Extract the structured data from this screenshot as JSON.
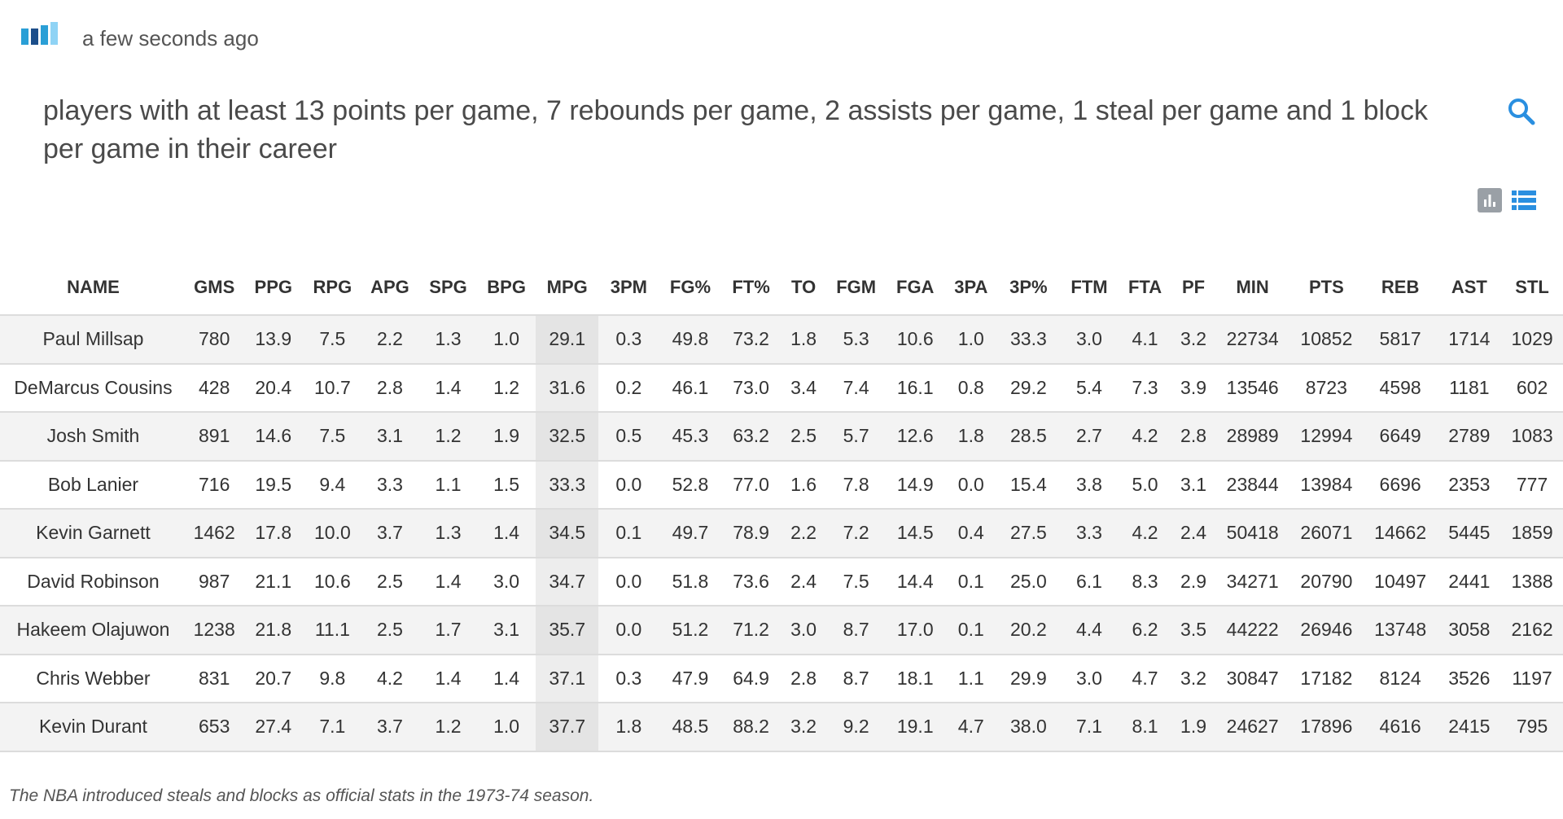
{
  "header": {
    "timestamp": "a few seconds ago",
    "logo_colors": [
      "#2a9fd6",
      "#1c4e8a",
      "#2a9fd6",
      "#8fd3f5"
    ]
  },
  "query": {
    "text": "players with at least 13 points per game, 7 rebounds per game, 2 assists per game, 1 steal per game and 1 block per game in their career",
    "search_icon": "search-icon"
  },
  "view_toggle": {
    "chart_icon": "bar-chart-icon",
    "list_icon": "list-icon",
    "active": "list"
  },
  "colors": {
    "accent": "#2a8fe0",
    "sorted_column": "#e4e4e4",
    "row_stripe": "#f3f3f3"
  },
  "table": {
    "sorted_column": "MPG",
    "columns": [
      "NAME",
      "GMS",
      "PPG",
      "RPG",
      "APG",
      "SPG",
      "BPG",
      "MPG",
      "3PM",
      "FG%",
      "FT%",
      "TO",
      "FGM",
      "FGA",
      "3PA",
      "3P%",
      "FTM",
      "FTA",
      "PF",
      "MIN",
      "PTS",
      "REB",
      "AST",
      "STL"
    ],
    "rows": [
      [
        "Paul Millsap",
        "780",
        "13.9",
        "7.5",
        "2.2",
        "1.3",
        "1.0",
        "29.1",
        "0.3",
        "49.8",
        "73.2",
        "1.8",
        "5.3",
        "10.6",
        "1.0",
        "33.3",
        "3.0",
        "4.1",
        "3.2",
        "22734",
        "10852",
        "5817",
        "1714",
        "1029"
      ],
      [
        "DeMarcus Cousins",
        "428",
        "20.4",
        "10.7",
        "2.8",
        "1.4",
        "1.2",
        "31.6",
        "0.2",
        "46.1",
        "73.0",
        "3.4",
        "7.4",
        "16.1",
        "0.8",
        "29.2",
        "5.4",
        "7.3",
        "3.9",
        "13546",
        "8723",
        "4598",
        "1181",
        "602"
      ],
      [
        "Josh Smith",
        "891",
        "14.6",
        "7.5",
        "3.1",
        "1.2",
        "1.9",
        "32.5",
        "0.5",
        "45.3",
        "63.2",
        "2.5",
        "5.7",
        "12.6",
        "1.8",
        "28.5",
        "2.7",
        "4.2",
        "2.8",
        "28989",
        "12994",
        "6649",
        "2789",
        "1083"
      ],
      [
        "Bob Lanier",
        "716",
        "19.5",
        "9.4",
        "3.3",
        "1.1",
        "1.5",
        "33.3",
        "0.0",
        "52.8",
        "77.0",
        "1.6",
        "7.8",
        "14.9",
        "0.0",
        "15.4",
        "3.8",
        "5.0",
        "3.1",
        "23844",
        "13984",
        "6696",
        "2353",
        "777"
      ],
      [
        "Kevin Garnett",
        "1462",
        "17.8",
        "10.0",
        "3.7",
        "1.3",
        "1.4",
        "34.5",
        "0.1",
        "49.7",
        "78.9",
        "2.2",
        "7.2",
        "14.5",
        "0.4",
        "27.5",
        "3.3",
        "4.2",
        "2.4",
        "50418",
        "26071",
        "14662",
        "5445",
        "1859"
      ],
      [
        "David Robinson",
        "987",
        "21.1",
        "10.6",
        "2.5",
        "1.4",
        "3.0",
        "34.7",
        "0.0",
        "51.8",
        "73.6",
        "2.4",
        "7.5",
        "14.4",
        "0.1",
        "25.0",
        "6.1",
        "8.3",
        "2.9",
        "34271",
        "20790",
        "10497",
        "2441",
        "1388"
      ],
      [
        "Hakeem Olajuwon",
        "1238",
        "21.8",
        "11.1",
        "2.5",
        "1.7",
        "3.1",
        "35.7",
        "0.0",
        "51.2",
        "71.2",
        "3.0",
        "8.7",
        "17.0",
        "0.1",
        "20.2",
        "4.4",
        "6.2",
        "3.5",
        "44222",
        "26946",
        "13748",
        "3058",
        "2162"
      ],
      [
        "Chris Webber",
        "831",
        "20.7",
        "9.8",
        "4.2",
        "1.4",
        "1.4",
        "37.1",
        "0.3",
        "47.9",
        "64.9",
        "2.8",
        "8.7",
        "18.1",
        "1.1",
        "29.9",
        "3.0",
        "4.7",
        "3.2",
        "30847",
        "17182",
        "8124",
        "3526",
        "1197"
      ],
      [
        "Kevin Durant",
        "653",
        "27.4",
        "7.1",
        "3.7",
        "1.2",
        "1.0",
        "37.7",
        "1.8",
        "48.5",
        "88.2",
        "3.2",
        "9.2",
        "19.1",
        "4.7",
        "38.0",
        "7.1",
        "8.1",
        "1.9",
        "24627",
        "17896",
        "4616",
        "2415",
        "795"
      ]
    ]
  },
  "footnote": "The NBA introduced steals and blocks as official stats in the 1973-74 season."
}
